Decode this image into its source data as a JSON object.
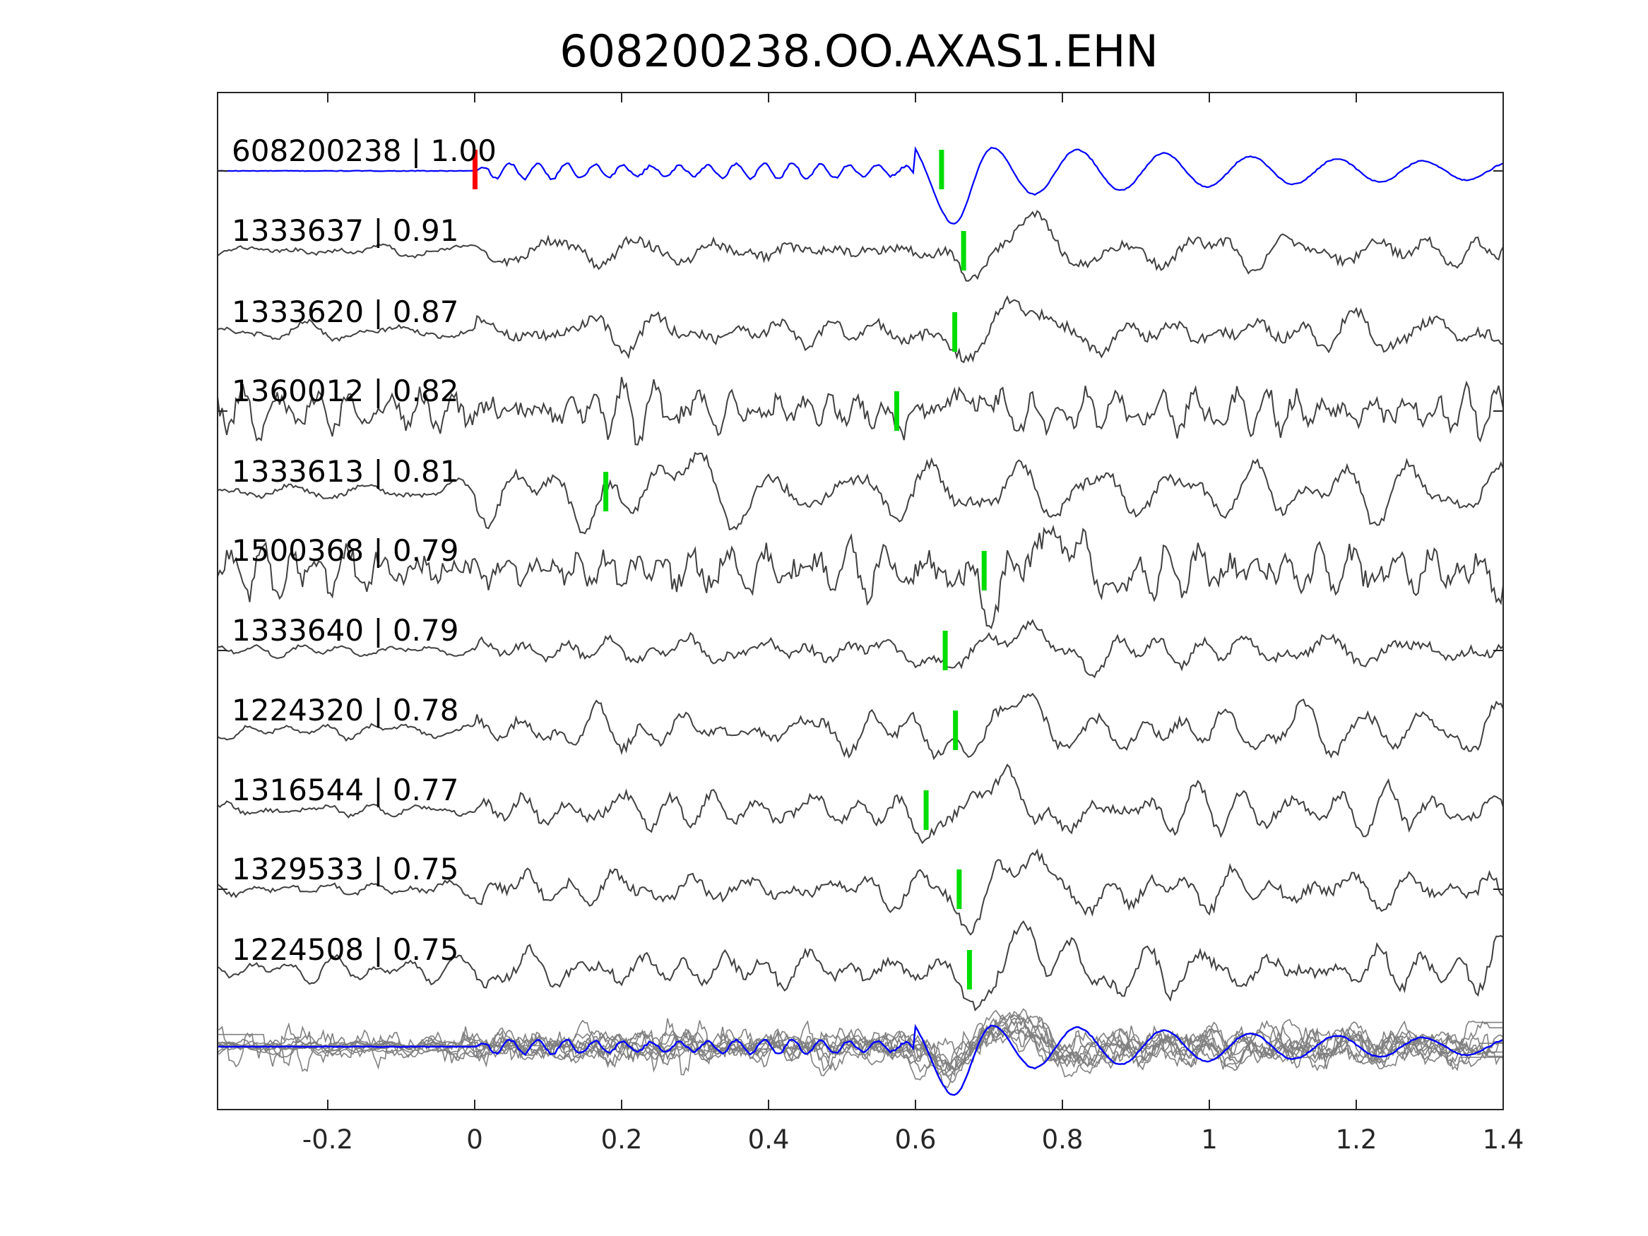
{
  "chart_data": {
    "type": "line",
    "title": "608200238.OO.AXAS1.EHN",
    "xlabel": "",
    "ylabel": "",
    "xlim": [
      -0.35,
      1.4
    ],
    "x_ticks": [
      {
        "value": -0.2,
        "label": "-0.2"
      },
      {
        "value": 0,
        "label": "0"
      },
      {
        "value": 0.2,
        "label": "0.2"
      },
      {
        "value": 0.4,
        "label": "0.4"
      },
      {
        "value": 0.6,
        "label": "0.6"
      },
      {
        "value": 0.8,
        "label": "0.8"
      },
      {
        "value": 1,
        "label": "1"
      },
      {
        "value": 1.2,
        "label": "1.2"
      },
      {
        "value": 1.4,
        "label": "1.4"
      }
    ],
    "grid": false,
    "colors": {
      "template": "#0000ff",
      "trace": "#404040",
      "stack_trace": "#808080",
      "template_pick": "#ff0000",
      "pick": "#00dd00",
      "axis": "#262626"
    },
    "series": [
      {
        "label": "608200238 | 1.00",
        "id": "608200238",
        "cc": 1.0,
        "pick": 0.0,
        "pick2": 0.635,
        "color_role": "template"
      },
      {
        "label": "1333637 | 0.91",
        "id": "1333637",
        "cc": 0.91,
        "pick": 0.665
      },
      {
        "label": "1333620 | 0.87",
        "id": "1333620",
        "cc": 0.87,
        "pick": 0.653
      },
      {
        "label": "1360012 | 0.82",
        "id": "1360012",
        "cc": 0.82,
        "pick": 0.574
      },
      {
        "label": "1333613 | 0.81",
        "id": "1333613",
        "cc": 0.81,
        "pick": 0.178
      },
      {
        "label": "1500368 | 0.79",
        "id": "1500368",
        "cc": 0.79,
        "pick": 0.693
      },
      {
        "label": "1333640 | 0.79",
        "id": "1333640",
        "cc": 0.79,
        "pick": 0.64
      },
      {
        "label": "1224320 | 0.78",
        "id": "1224320",
        "cc": 0.78,
        "pick": 0.654
      },
      {
        "label": "1316544 | 0.77",
        "id": "1316544",
        "cc": 0.77,
        "pick": 0.614
      },
      {
        "label": "1329533 | 0.75",
        "id": "1329533",
        "cc": 0.75,
        "pick": 0.659
      },
      {
        "label": "1224508 | 0.75",
        "id": "1224508",
        "cc": 0.75,
        "pick": 0.673
      }
    ],
    "stack": {
      "description_role": "overlay of all aligned traces with template"
    }
  }
}
